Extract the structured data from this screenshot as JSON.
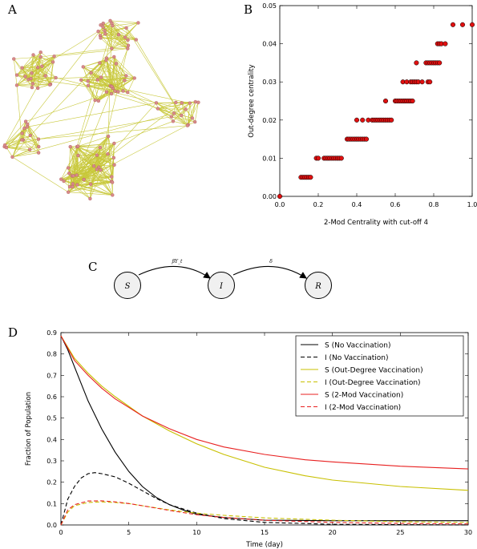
{
  "panels": {
    "a": "A",
    "b": "B",
    "c": "C",
    "d": "D"
  },
  "colors": {
    "network_edge": "#c8c83a",
    "network_node": "#d88a8a",
    "scatter_point": "#e01010",
    "black": "#000000",
    "olive": "#c8c000",
    "red": "#e82020"
  },
  "diagram": {
    "nodes": [
      "S",
      "I",
      "R"
    ],
    "edges": [
      {
        "from": "S",
        "to": "I",
        "label": "βY_t"
      },
      {
        "from": "I",
        "to": "R",
        "label": "δ"
      }
    ]
  },
  "chart_data": [
    {
      "type": "scatter",
      "panel": "B",
      "xlabel": "2-Mod Centrality with cut-off 4",
      "ylabel": "Out-degree centrality",
      "xlim": [
        0,
        1.0
      ],
      "ylim": [
        0,
        0.05
      ],
      "xticks": [
        "0.0",
        "0.2",
        "0.4",
        "0.6",
        "0.8",
        "1.0"
      ],
      "yticks": [
        "0.00",
        "0.01",
        "0.02",
        "0.03",
        "0.04",
        "0.05"
      ],
      "points": [
        [
          0.0,
          0.0
        ],
        [
          0.11,
          0.005
        ],
        [
          0.12,
          0.005
        ],
        [
          0.13,
          0.005
        ],
        [
          0.14,
          0.005
        ],
        [
          0.15,
          0.005
        ],
        [
          0.16,
          0.005
        ],
        [
          0.19,
          0.01
        ],
        [
          0.2,
          0.01
        ],
        [
          0.23,
          0.01
        ],
        [
          0.24,
          0.01
        ],
        [
          0.25,
          0.01
        ],
        [
          0.26,
          0.01
        ],
        [
          0.27,
          0.01
        ],
        [
          0.28,
          0.01
        ],
        [
          0.29,
          0.01
        ],
        [
          0.3,
          0.01
        ],
        [
          0.31,
          0.01
        ],
        [
          0.32,
          0.01
        ],
        [
          0.35,
          0.015
        ],
        [
          0.36,
          0.015
        ],
        [
          0.37,
          0.015
        ],
        [
          0.38,
          0.015
        ],
        [
          0.39,
          0.015
        ],
        [
          0.4,
          0.015
        ],
        [
          0.41,
          0.015
        ],
        [
          0.42,
          0.015
        ],
        [
          0.43,
          0.015
        ],
        [
          0.44,
          0.015
        ],
        [
          0.45,
          0.015
        ],
        [
          0.4,
          0.02
        ],
        [
          0.43,
          0.02
        ],
        [
          0.46,
          0.02
        ],
        [
          0.48,
          0.02
        ],
        [
          0.49,
          0.02
        ],
        [
          0.5,
          0.02
        ],
        [
          0.51,
          0.02
        ],
        [
          0.52,
          0.02
        ],
        [
          0.53,
          0.02
        ],
        [
          0.54,
          0.02
        ],
        [
          0.55,
          0.02
        ],
        [
          0.56,
          0.02
        ],
        [
          0.57,
          0.02
        ],
        [
          0.58,
          0.02
        ],
        [
          0.55,
          0.025
        ],
        [
          0.6,
          0.025
        ],
        [
          0.61,
          0.025
        ],
        [
          0.62,
          0.025
        ],
        [
          0.63,
          0.025
        ],
        [
          0.64,
          0.025
        ],
        [
          0.65,
          0.025
        ],
        [
          0.66,
          0.025
        ],
        [
          0.67,
          0.025
        ],
        [
          0.68,
          0.025
        ],
        [
          0.69,
          0.025
        ],
        [
          0.64,
          0.03
        ],
        [
          0.66,
          0.03
        ],
        [
          0.68,
          0.03
        ],
        [
          0.69,
          0.03
        ],
        [
          0.7,
          0.03
        ],
        [
          0.71,
          0.03
        ],
        [
          0.72,
          0.03
        ],
        [
          0.74,
          0.03
        ],
        [
          0.77,
          0.03
        ],
        [
          0.78,
          0.03
        ],
        [
          0.71,
          0.035
        ],
        [
          0.76,
          0.035
        ],
        [
          0.77,
          0.035
        ],
        [
          0.78,
          0.035
        ],
        [
          0.79,
          0.035
        ],
        [
          0.8,
          0.035
        ],
        [
          0.81,
          0.035
        ],
        [
          0.82,
          0.035
        ],
        [
          0.83,
          0.035
        ],
        [
          0.82,
          0.04
        ],
        [
          0.83,
          0.04
        ],
        [
          0.84,
          0.04
        ],
        [
          0.86,
          0.04
        ],
        [
          0.9,
          0.045
        ],
        [
          0.95,
          0.045
        ],
        [
          1.0,
          0.045
        ]
      ]
    },
    {
      "type": "line",
      "panel": "D",
      "xlabel": "Time (day)",
      "ylabel": "Fraction of Population",
      "xlim": [
        0,
        30
      ],
      "ylim": [
        0,
        0.9
      ],
      "xticks": [
        "0",
        "5",
        "10",
        "15",
        "20",
        "25",
        "30"
      ],
      "yticks": [
        "0.0",
        "0.1",
        "0.2",
        "0.3",
        "0.4",
        "0.5",
        "0.6",
        "0.7",
        "0.8",
        "0.9"
      ],
      "legend_position": "top-right",
      "series": [
        {
          "name": "S (No Vaccination)",
          "color": "#000000",
          "dash": false,
          "x": [
            0,
            0.5,
            1,
            2,
            3,
            4,
            5,
            6,
            7,
            8,
            9,
            10,
            12,
            15,
            20,
            25,
            30
          ],
          "y": [
            0.885,
            0.82,
            0.74,
            0.58,
            0.45,
            0.34,
            0.25,
            0.18,
            0.13,
            0.095,
            0.07,
            0.05,
            0.035,
            0.022,
            0.02,
            0.02,
            0.02
          ]
        },
        {
          "name": "I (No Vaccination)",
          "color": "#000000",
          "dash": true,
          "x": [
            0,
            0.5,
            1,
            1.5,
            2,
            2.5,
            3,
            4,
            5,
            6,
            7,
            8,
            10,
            12,
            15,
            20,
            30
          ],
          "y": [
            0.0,
            0.12,
            0.18,
            0.22,
            0.24,
            0.245,
            0.24,
            0.225,
            0.195,
            0.16,
            0.125,
            0.095,
            0.055,
            0.03,
            0.012,
            0.003,
            0.0
          ]
        },
        {
          "name": "S (Out-Degree Vaccination)",
          "color": "#c8c000",
          "dash": false,
          "x": [
            0,
            1,
            2,
            3,
            4,
            5,
            6,
            8,
            10,
            12,
            15,
            18,
            20,
            25,
            30
          ],
          "y": [
            0.885,
            0.78,
            0.71,
            0.65,
            0.6,
            0.555,
            0.51,
            0.44,
            0.38,
            0.33,
            0.27,
            0.23,
            0.21,
            0.18,
            0.162
          ]
        },
        {
          "name": "I (Out-Degree Vaccination)",
          "color": "#c8c000",
          "dash": true,
          "x": [
            0,
            0.5,
            1,
            2,
            3,
            4,
            5,
            6,
            8,
            10,
            12,
            15,
            20,
            25,
            30
          ],
          "y": [
            0.0,
            0.06,
            0.09,
            0.105,
            0.108,
            0.105,
            0.1,
            0.09,
            0.07,
            0.055,
            0.045,
            0.033,
            0.022,
            0.015,
            0.012
          ]
        },
        {
          "name": "S (2-Mod Vaccination)",
          "color": "#e82020",
          "dash": false,
          "x": [
            0,
            1,
            2,
            3,
            4,
            5,
            6,
            8,
            10,
            12,
            15,
            18,
            20,
            25,
            30
          ],
          "y": [
            0.885,
            0.77,
            0.7,
            0.64,
            0.59,
            0.55,
            0.51,
            0.45,
            0.4,
            0.365,
            0.33,
            0.305,
            0.295,
            0.275,
            0.262
          ]
        },
        {
          "name": "I (2-Mod Vaccination)",
          "color": "#e82020",
          "dash": true,
          "x": [
            0,
            0.5,
            1,
            2,
            3,
            4,
            5,
            6,
            8,
            10,
            12,
            15,
            20,
            25,
            30
          ],
          "y": [
            0.0,
            0.07,
            0.095,
            0.112,
            0.113,
            0.108,
            0.1,
            0.09,
            0.068,
            0.048,
            0.035,
            0.022,
            0.012,
            0.007,
            0.005
          ]
        }
      ]
    }
  ]
}
